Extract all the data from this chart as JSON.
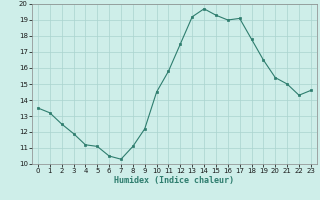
{
  "x": [
    0,
    1,
    2,
    3,
    4,
    5,
    6,
    7,
    8,
    9,
    10,
    11,
    12,
    13,
    14,
    15,
    16,
    17,
    18,
    19,
    20,
    21,
    22,
    23
  ],
  "y": [
    13.5,
    13.2,
    12.5,
    11.9,
    11.2,
    11.1,
    10.5,
    10.3,
    11.1,
    12.2,
    14.5,
    15.8,
    17.5,
    19.2,
    19.7,
    19.3,
    19.0,
    19.1,
    17.8,
    16.5,
    15.4,
    15.0,
    14.3,
    14.6
  ],
  "line_color": "#2e7d6e",
  "marker": "s",
  "marker_size": 2.0,
  "bg_color": "#ceeee9",
  "grid_color": "#aad4ce",
  "xlabel": "Humidex (Indice chaleur)",
  "ylim": [
    10,
    20
  ],
  "xlim": [
    -0.5,
    23.5
  ],
  "yticks": [
    10,
    11,
    12,
    13,
    14,
    15,
    16,
    17,
    18,
    19,
    20
  ],
  "xticks": [
    0,
    1,
    2,
    3,
    4,
    5,
    6,
    7,
    8,
    9,
    10,
    11,
    12,
    13,
    14,
    15,
    16,
    17,
    18,
    19,
    20,
    21,
    22,
    23
  ]
}
